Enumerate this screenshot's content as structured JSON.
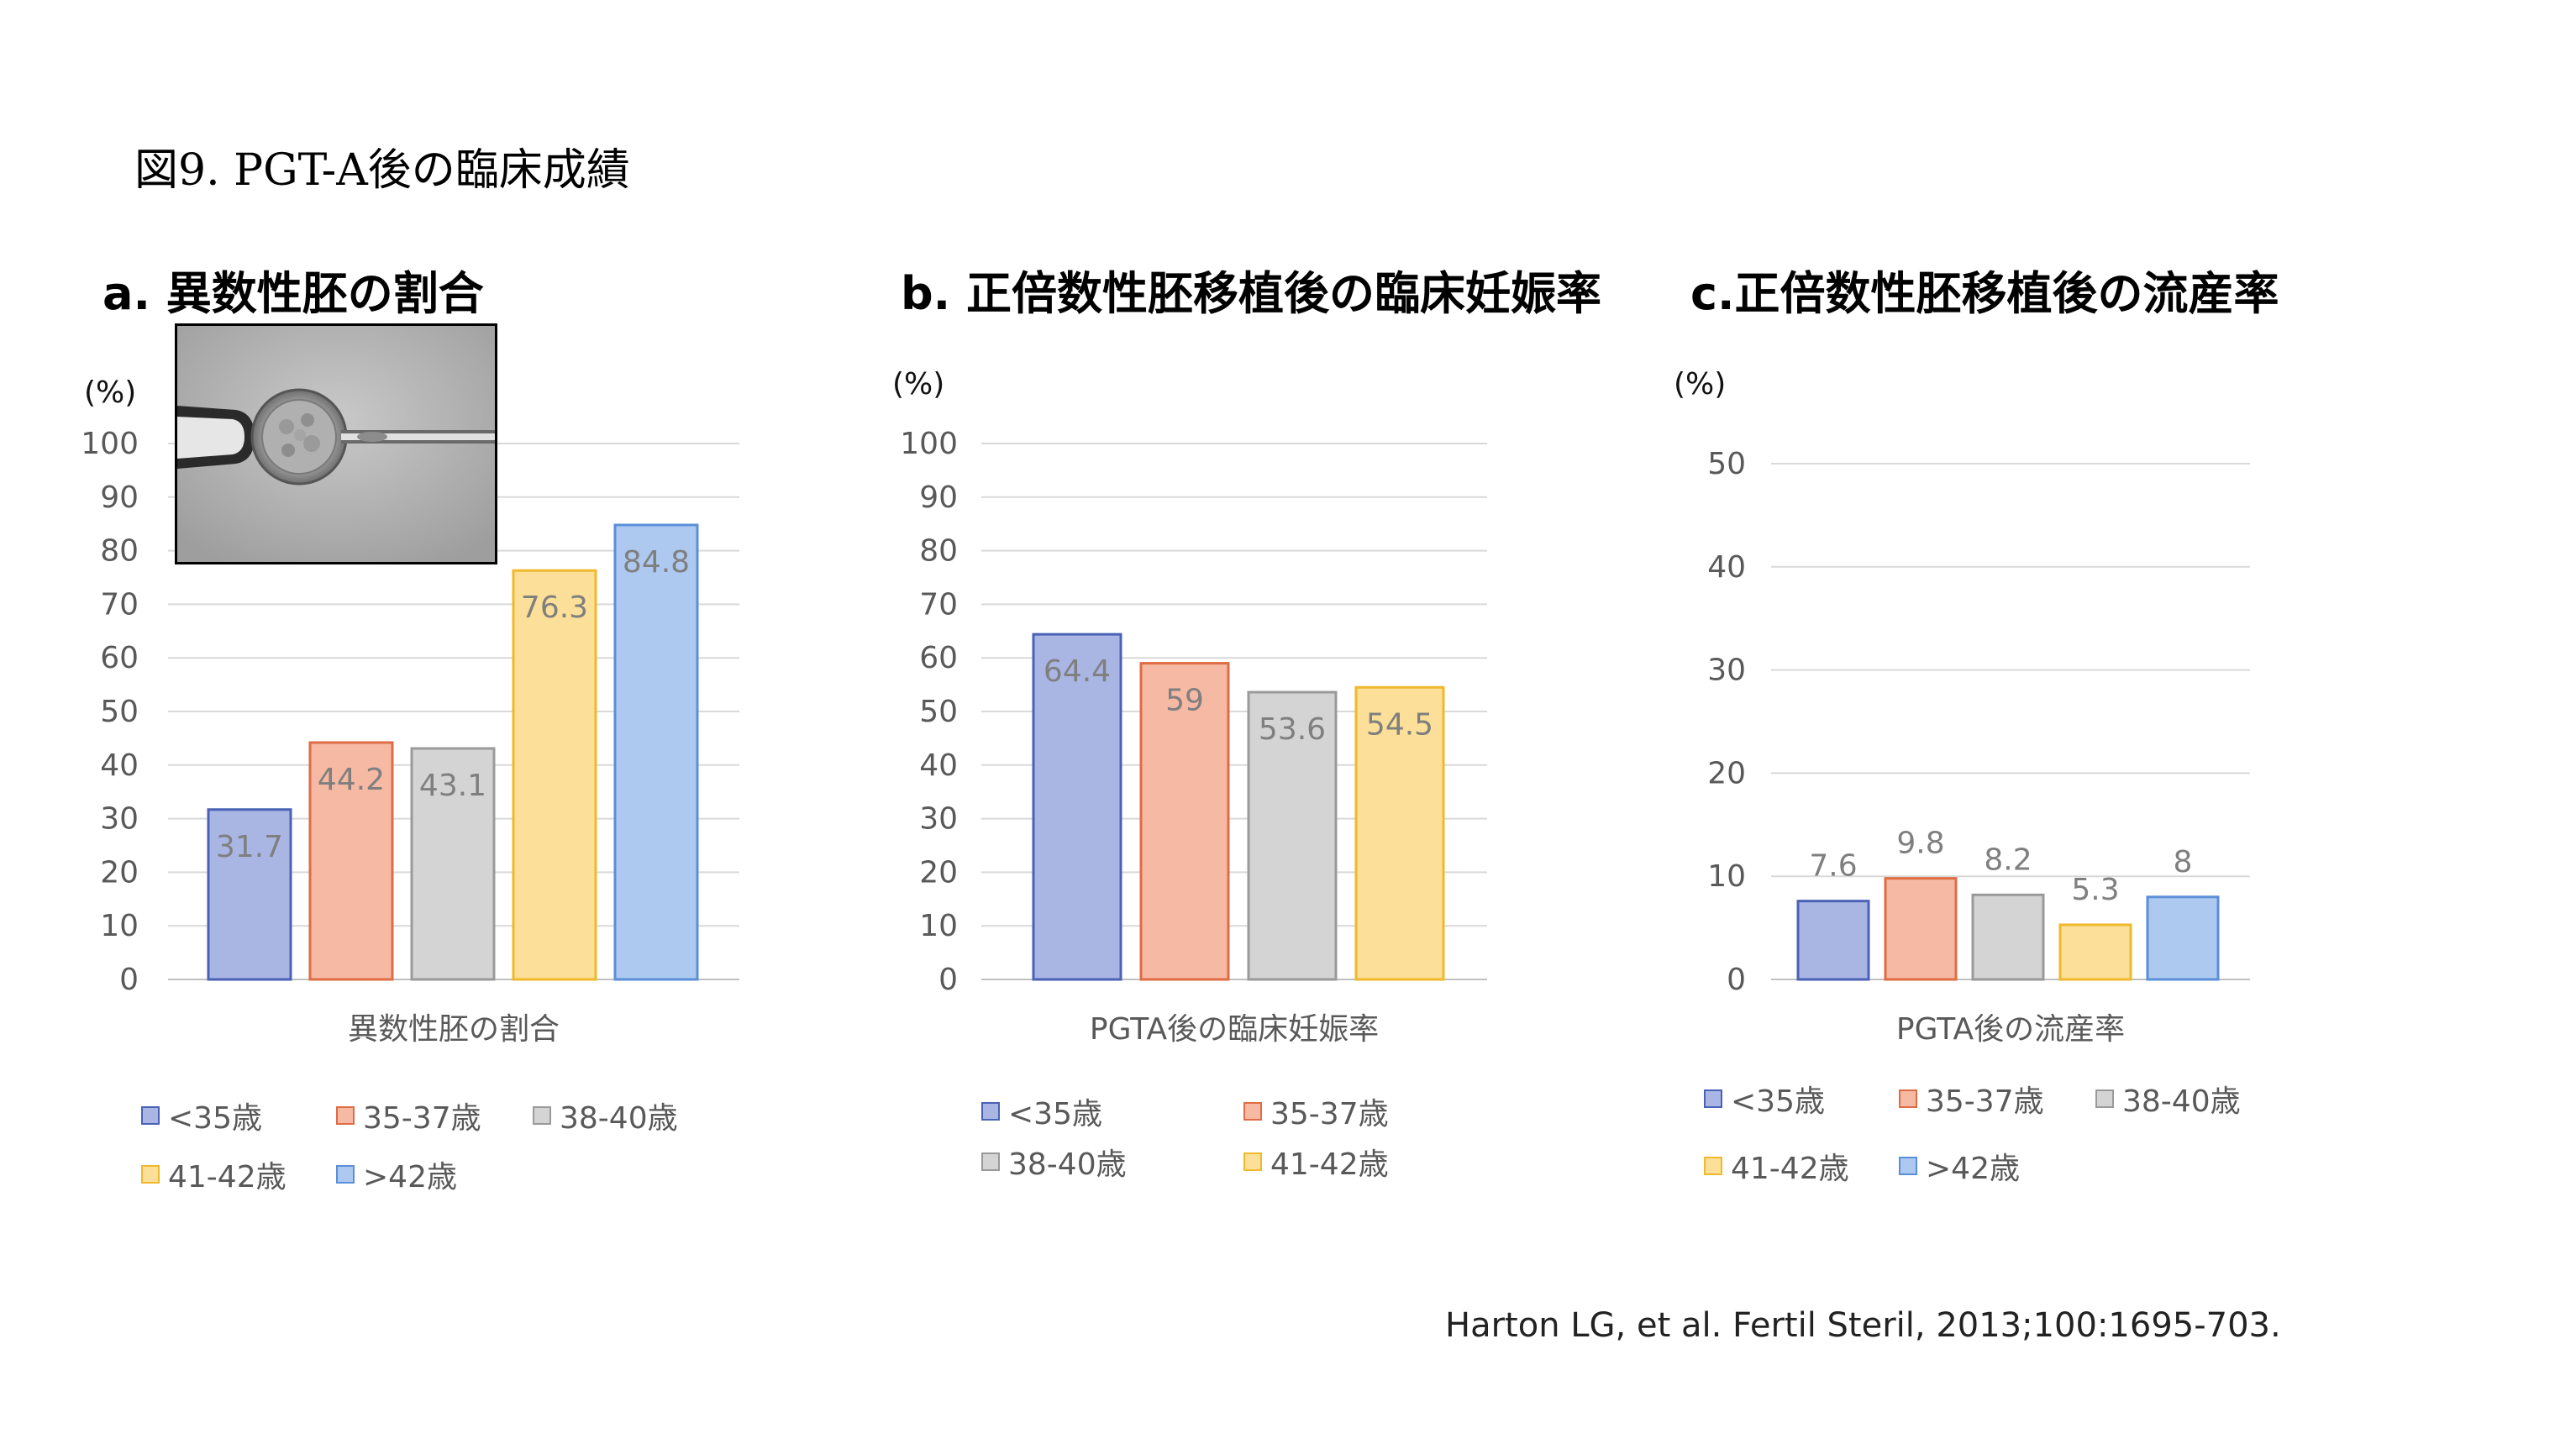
{
  "figure_title": "図9. PGT-A後の臨床成績",
  "citation": "Harton LG, et al. Fertil Steril, 2013;100:1695-703.",
  "colors": {
    "<35歳": "#a9b6e4",
    "35-37歳": "#f6b9a3",
    "38-40歳": "#d4d4d4",
    "41-42歳": "#fcdf98",
    ">42歳": "#aec9ef"
  },
  "chart_data": [
    {
      "type": "bar",
      "panel_title": "a. 異数性胚の割合",
      "unit": "(%)",
      "xlabel": "異数性胚の割合",
      "ylim": [
        0,
        100
      ],
      "yticks": [
        0,
        10,
        20,
        30,
        40,
        50,
        60,
        70,
        80,
        90,
        100
      ],
      "grid": true,
      "legend_position": "bottom",
      "categories": [
        "<35歳",
        "35-37歳",
        "38-40歳",
        "41-42歳",
        ">42歳"
      ],
      "values": [
        31.7,
        44.2,
        43.1,
        76.3,
        84.8
      ]
    },
    {
      "type": "bar",
      "panel_title": "b. 正倍数性胚移植後の臨床妊娠率",
      "unit": "(%)",
      "xlabel": "PGTA後の臨床妊娠率",
      "ylim": [
        0,
        100
      ],
      "yticks": [
        0,
        10,
        20,
        30,
        40,
        50,
        60,
        70,
        80,
        90,
        100
      ],
      "grid": true,
      "legend_position": "bottom",
      "categories": [
        "<35歳",
        "35-37歳",
        "38-40歳",
        "41-42歳"
      ],
      "values": [
        64.4,
        59,
        53.6,
        54.5
      ]
    },
    {
      "type": "bar",
      "panel_title": "c.正倍数性胚移植後の流産率",
      "unit": "(%)",
      "xlabel": "PGTA後の流産率",
      "ylim": [
        0,
        50
      ],
      "yticks": [
        0,
        10,
        20,
        30,
        40,
        50
      ],
      "grid": true,
      "legend_position": "bottom",
      "categories": [
        "<35歳",
        "35-37歳",
        "38-40歳",
        "41-42歳",
        ">42歳"
      ],
      "values": [
        7.6,
        9.8,
        8.2,
        5.3,
        8
      ]
    }
  ]
}
